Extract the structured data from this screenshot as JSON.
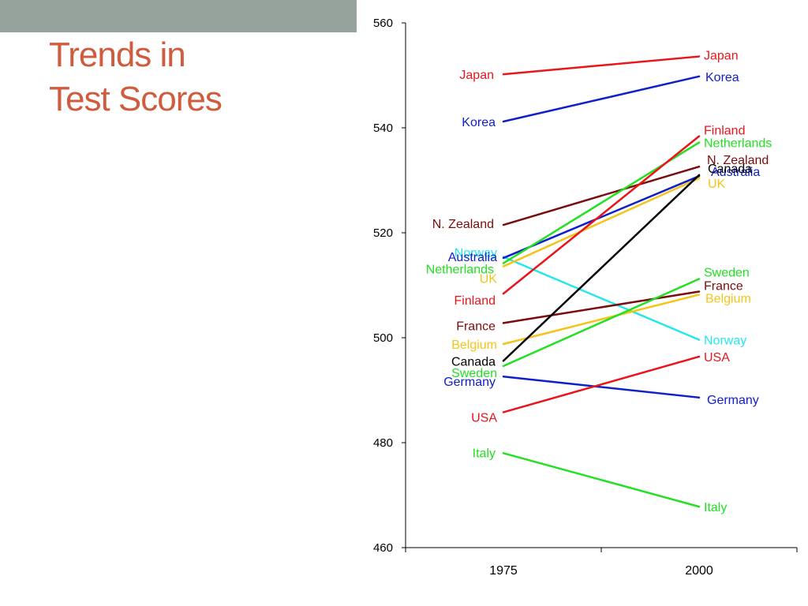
{
  "slide": {
    "title_lines": [
      "Trends in",
      "Test Scores"
    ],
    "accent_bar_color": "#95a39c",
    "title_color": "#cf5c3e"
  },
  "chart_data": {
    "type": "line",
    "title": "",
    "xlabel": "",
    "ylabel": "",
    "categories": [
      "1975",
      "2000"
    ],
    "ylim": [
      460,
      560
    ],
    "yticks": [
      460,
      480,
      500,
      520,
      540,
      560
    ],
    "grid": false,
    "series": [
      {
        "name": "Japan",
        "values": [
          550.2,
          553.6
        ],
        "color": "#e8161a"
      },
      {
        "name": "Korea",
        "values": [
          541.2,
          549.8
        ],
        "color": "#1020c8"
      },
      {
        "name": "N. Zealand",
        "values": [
          521.5,
          532.6
        ],
        "color": "#7a0c0c"
      },
      {
        "name": "Norway",
        "values": [
          515.4,
          499.6
        ],
        "color": "#22e8ee"
      },
      {
        "name": "Australia",
        "values": [
          515.2,
          530.8
        ],
        "color": "#1020c8"
      },
      {
        "name": "Netherlands",
        "values": [
          514.2,
          537.2
        ],
        "color": "#22e022"
      },
      {
        "name": "UK",
        "values": [
          513.6,
          530.4
        ],
        "color": "#f4c418"
      },
      {
        "name": "Finland",
        "values": [
          508.4,
          538.4
        ],
        "color": "#e8161a"
      },
      {
        "name": "France",
        "values": [
          502.8,
          508.8
        ],
        "color": "#7a0c0c"
      },
      {
        "name": "Belgium",
        "values": [
          498.8,
          508.2
        ],
        "color": "#f4c418"
      },
      {
        "name": "Canada",
        "values": [
          495.6,
          531.0
        ],
        "color": "#000000"
      },
      {
        "name": "Sweden",
        "values": [
          494.6,
          511.2
        ],
        "color": "#22e022"
      },
      {
        "name": "Germany",
        "values": [
          492.6,
          488.6
        ],
        "color": "#1020c8"
      },
      {
        "name": "USA",
        "values": [
          485.8,
          496.4
        ],
        "color": "#e8161a"
      },
      {
        "name": "Italy",
        "values": [
          478.0,
          467.8
        ],
        "color": "#22e022"
      }
    ]
  }
}
